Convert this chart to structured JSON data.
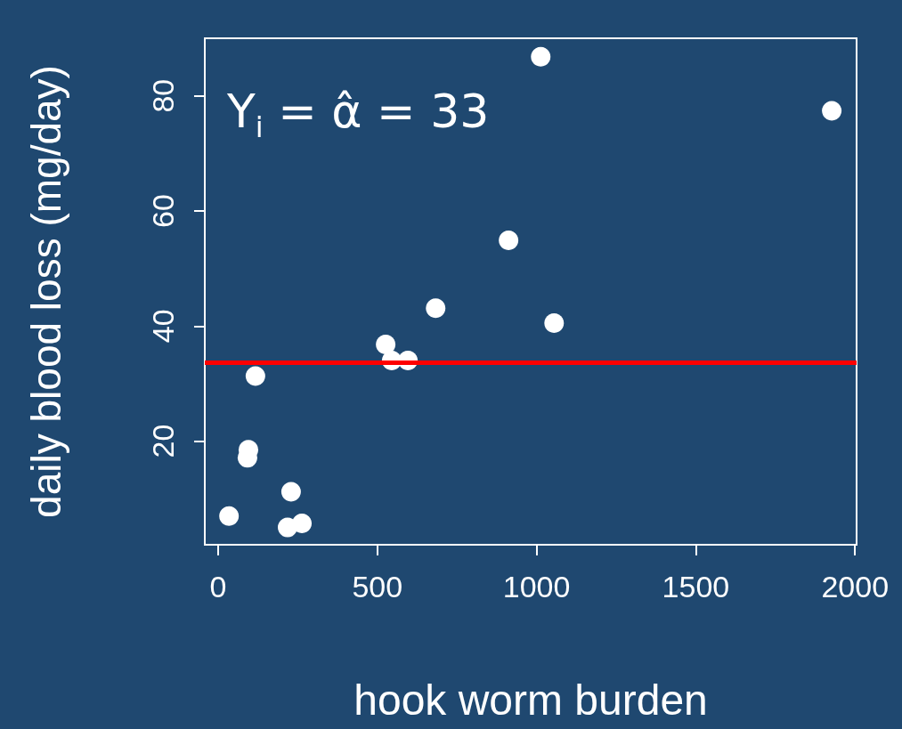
{
  "chart_data": {
    "type": "scatter",
    "xlabel": "hook worm burden",
    "ylabel": "daily blood loss (mg/day)",
    "annotations": [
      "Y$_{i}$ = α̂ = 33"
    ],
    "x": [
      34,
      95,
      92,
      117,
      229,
      218,
      263,
      526,
      545,
      596,
      683,
      912,
      1013,
      1055,
      1927
    ],
    "series": [
      {
        "color": "#ffffff",
        "values": [
          7.0,
          18.5,
          17.1,
          31.3,
          11.2,
          5.0,
          5.7,
          36.8,
          34.0,
          34.0,
          43.1,
          54.9,
          86.8,
          40.5,
          77.4
        ]
      }
    ],
    "xlim": [
      -42,
      2005
    ],
    "xticks": [
      0,
      500,
      1000,
      1500,
      2000
    ],
    "ylim": [
      2,
      90
    ],
    "yticks": [
      20,
      40,
      60,
      80
    ],
    "ref_lines": [
      {
        "axis": "y",
        "value": 33.6,
        "color": "#ff0000"
      }
    ],
    "grid": false,
    "marker": "circle"
  }
}
